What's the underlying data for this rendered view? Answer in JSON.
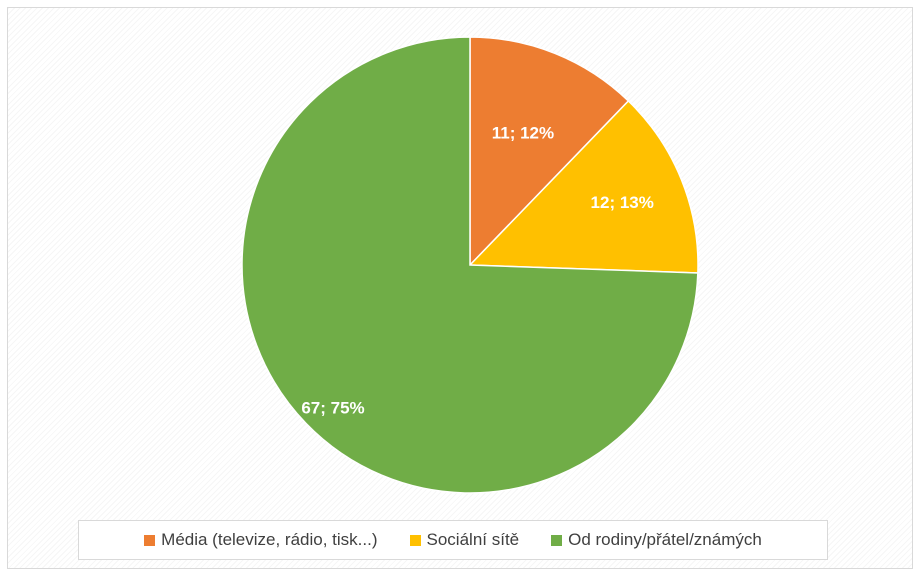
{
  "chart_data": {
    "type": "pie",
    "title": "",
    "categories": [
      "Média (televize, rádio, tisk...)",
      "Sociální sítě",
      "Od rodiny/přátel/známých"
    ],
    "values": [
      11,
      12,
      67
    ],
    "percentages": [
      12,
      13,
      75
    ],
    "data_labels": [
      "11; 12%",
      "12; 13%",
      "67; 75%"
    ],
    "colors": [
      "#ED7D31",
      "#FFC000",
      "#70AD47"
    ],
    "start_angle_deg": 0,
    "direction": "clockwise",
    "legend_position": "bottom"
  }
}
